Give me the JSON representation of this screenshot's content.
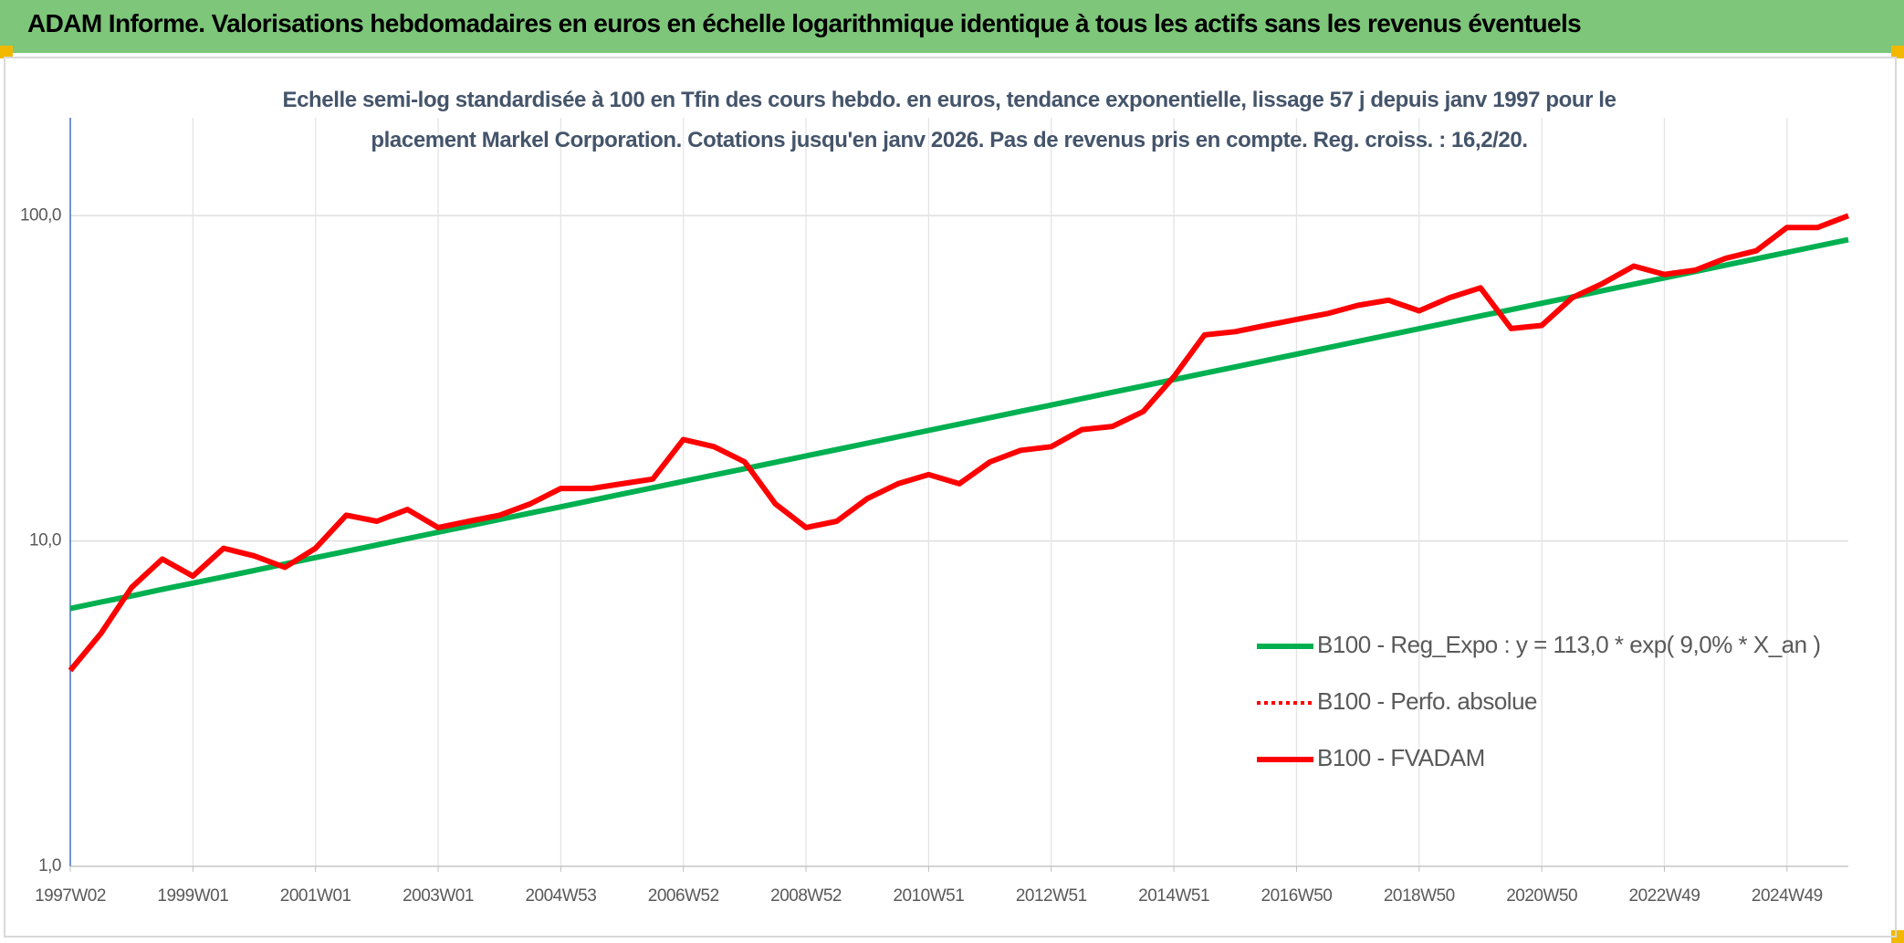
{
  "header": {
    "title": "ADAM Informe. Valorisations hebdomadaires en euros en échelle logarithmique identique à tous les actifs sans les revenus éventuels"
  },
  "chart_data": {
    "type": "line",
    "subtitle": "Echelle semi-log standardisée à 100 en Tfin des cours hebdo. en euros, tendance exponentielle, lissage 57 j depuis janv 1997 pour le placement Markel Corporation.  Cotations jusqu'en janv 2026. Pas de revenus pris en compte. Reg. croiss. : 16,2/20.",
    "log_scale": true,
    "grid": true,
    "legend": "right",
    "ylim": [
      1,
      200
    ],
    "yticks": [
      {
        "value": 1,
        "label": "1,0"
      },
      {
        "value": 10,
        "label": "10,0"
      },
      {
        "value": 100,
        "label": "100,0"
      }
    ],
    "categories": [
      "1997W02",
      null,
      null,
      null,
      "1999W01",
      null,
      null,
      null,
      "2001W01",
      null,
      null,
      null,
      "2003W01",
      null,
      null,
      null,
      "2004W53",
      null,
      null,
      null,
      "2006W52",
      null,
      null,
      null,
      "2008W52",
      null,
      null,
      null,
      "2010W51",
      null,
      null,
      null,
      "2012W51",
      null,
      null,
      null,
      "2014W51",
      null,
      null,
      null,
      "2016W50",
      null,
      null,
      null,
      "2018W50",
      null,
      null,
      null,
      "2020W50",
      null,
      null,
      null,
      "2022W49",
      null,
      null,
      null,
      "2024W49",
      null,
      null
    ],
    "series": [
      {
        "name": "B100 - Reg_Expo : y = 113,0 * exp( 9,0% *  X_an )",
        "color": "#00b050",
        "style": "solid",
        "values": [
          6.2,
          6.49,
          6.78,
          7.1,
          7.42,
          7.76,
          8.12,
          8.5,
          8.89,
          9.3,
          9.72,
          10.17,
          10.64,
          11.13,
          11.64,
          12.18,
          12.74,
          13.33,
          13.94,
          14.58,
          15.25,
          15.96,
          16.69,
          17.46,
          18.26,
          19.1,
          19.98,
          20.9,
          21.87,
          22.87,
          23.93,
          25.03,
          26.18,
          27.39,
          28.65,
          29.97,
          31.35,
          32.79,
          34.3,
          35.88,
          37.53,
          39.26,
          41.07,
          42.96,
          44.93,
          47.0,
          49.17,
          51.43,
          53.8,
          56.27,
          58.86,
          61.57,
          64.41,
          67.37,
          70.47,
          73.72,
          77.11,
          80.66,
          84.38
        ]
      },
      {
        "name": "B100 - Perfo. absolue",
        "color": "#ff0000",
        "style": "dotted",
        "values": [
          4.0,
          5.2,
          7.2,
          8.8,
          7.8,
          9.5,
          9.0,
          8.3,
          9.5,
          12.0,
          11.5,
          12.5,
          11.0,
          11.5,
          12.0,
          13.0,
          14.5,
          14.5,
          15.0,
          15.5,
          20.5,
          19.5,
          17.5,
          13.0,
          11.0,
          11.5,
          13.5,
          15.0,
          16.0,
          15.0,
          17.5,
          19.0,
          19.5,
          22.0,
          22.5,
          25.0,
          32.0,
          43.0,
          44.0,
          46.0,
          48.0,
          50.0,
          53.0,
          55.0,
          51.0,
          56.0,
          60.0,
          45.0,
          46.0,
          56.0,
          62.0,
          70.0,
          66.0,
          68.0,
          74.0,
          78.0,
          92.0,
          92.0,
          100.0
        ]
      },
      {
        "name": "B100 - FVADAM",
        "color": "#ff0000",
        "style": "solid",
        "values": [
          4.0,
          5.2,
          7.2,
          8.8,
          7.8,
          9.5,
          9.0,
          8.3,
          9.5,
          12.0,
          11.5,
          12.5,
          11.0,
          11.5,
          12.0,
          13.0,
          14.5,
          14.5,
          15.0,
          15.5,
          20.5,
          19.5,
          17.5,
          13.0,
          11.0,
          11.5,
          13.5,
          15.0,
          16.0,
          15.0,
          17.5,
          19.0,
          19.5,
          22.0,
          22.5,
          25.0,
          32.0,
          43.0,
          44.0,
          46.0,
          48.0,
          50.0,
          53.0,
          55.0,
          51.0,
          56.0,
          60.0,
          45.0,
          46.0,
          56.0,
          62.0,
          70.0,
          66.0,
          68.0,
          74.0,
          78.0,
          92.0,
          92.0,
          100.0
        ]
      }
    ]
  }
}
